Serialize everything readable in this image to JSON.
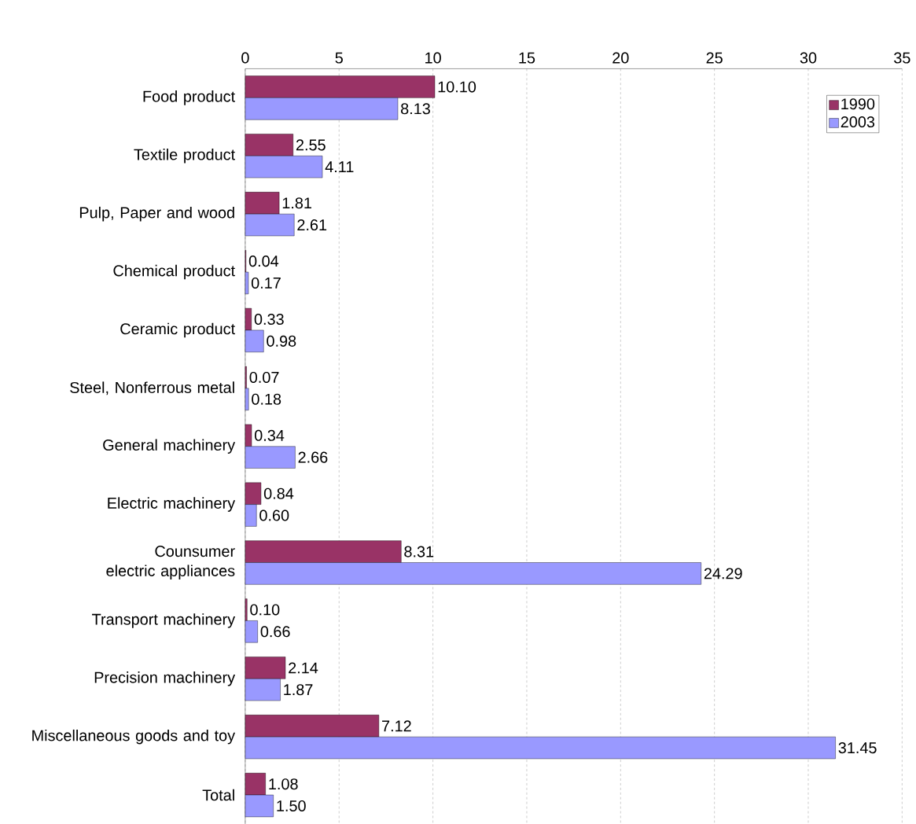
{
  "chart_data": {
    "type": "bar",
    "orientation": "horizontal",
    "categories": [
      "Food product",
      "Textile product",
      "Pulp, Paper and wood",
      "Chemical product",
      "Ceramic product",
      "Steel, Nonferrous metal",
      "General machinery",
      "Electric machinery",
      "Counsumer electric appliances",
      "Transport machinery",
      "Precision machinery",
      "Miscellaneous goods and toy",
      "Total"
    ],
    "series": [
      {
        "name": "1990",
        "color": "#993366",
        "values": [
          10.1,
          2.55,
          1.81,
          0.04,
          0.33,
          0.07,
          0.34,
          0.84,
          8.31,
          0.1,
          2.14,
          7.12,
          1.08
        ],
        "value_labels": [
          "10.10",
          "2.55",
          "1.81",
          "0.04",
          "0.33",
          "0.07",
          "0.34",
          "0.84",
          "8.31",
          "0.10",
          "2.14",
          "7.12",
          "1.08"
        ]
      },
      {
        "name": "2003",
        "color": "#9999ff",
        "values": [
          8.13,
          4.11,
          2.61,
          0.17,
          0.98,
          0.18,
          2.66,
          0.6,
          24.29,
          0.66,
          1.87,
          31.45,
          1.5
        ],
        "value_labels": [
          "8.13",
          "4.11",
          "2.61",
          "0.17",
          "0.98",
          "0.18",
          "2.66",
          "0.60",
          "24.29",
          "0.66",
          "1.87",
          "31.45",
          "1.50"
        ]
      }
    ],
    "xlim": [
      0,
      35
    ],
    "xticks": [
      0,
      5,
      10,
      15,
      20,
      25,
      30,
      35
    ],
    "grid": "x",
    "legend": "top right"
  }
}
